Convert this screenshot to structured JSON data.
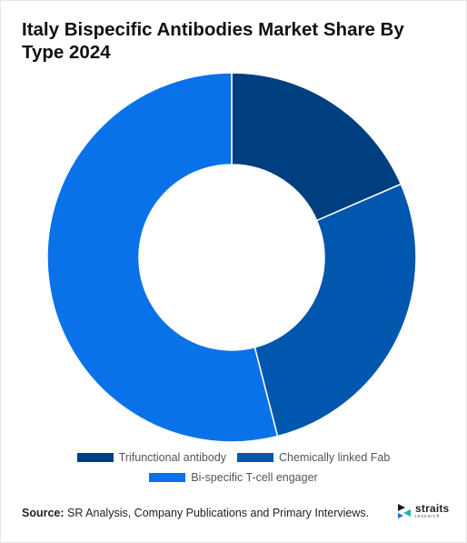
{
  "title": "Italy Bispecific Antibodies Market Share By Type 2024",
  "chart_data": {
    "type": "pie",
    "variant": "donut",
    "categories": [
      "Trifunctional antibody",
      "Chemically linked Fab",
      "Bi-specific T-cell engager"
    ],
    "values": [
      18.5,
      27.5,
      54.0
    ],
    "colors": [
      "#003f7f",
      "#0057ad",
      "#0a72e8"
    ],
    "legend_position": "bottom"
  },
  "source": {
    "label": "Source:",
    "text": "SR Analysis, Company Publications and Primary Interviews."
  },
  "logo": {
    "name": "straits",
    "sub": "research",
    "icon": "straits-logo-icon"
  }
}
